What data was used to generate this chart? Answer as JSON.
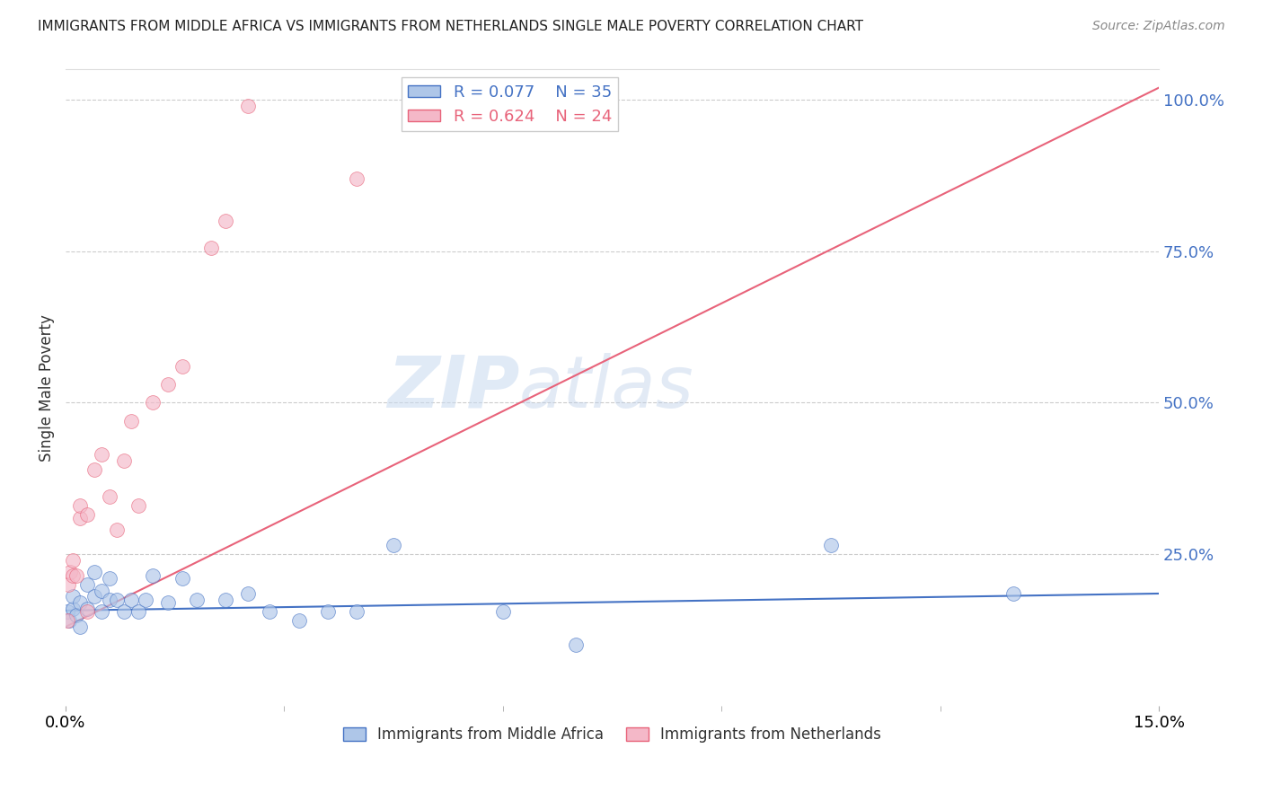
{
  "title": "IMMIGRANTS FROM MIDDLE AFRICA VS IMMIGRANTS FROM NETHERLANDS SINGLE MALE POVERTY CORRELATION CHART",
  "source": "Source: ZipAtlas.com",
  "ylabel": "Single Male Poverty",
  "background_color": "#ffffff",
  "watermark_text": "ZIPatlas",
  "series1_label": "Immigrants from Middle Africa",
  "series1_color": "#aec6e8",
  "series1_line_color": "#4472c4",
  "series1_R": "0.077",
  "series1_N": "35",
  "series2_label": "Immigrants from Netherlands",
  "series2_color": "#f4b8c8",
  "series2_line_color": "#e8637a",
  "series2_R": "0.624",
  "series2_N": "24",
  "xlim": [
    0.0,
    0.15
  ],
  "ylim": [
    0.0,
    1.05
  ],
  "yticks": [
    0.25,
    0.5,
    0.75,
    1.0
  ],
  "ytick_labels": [
    "25.0%",
    "50.0%",
    "75.0%",
    "100.0%"
  ],
  "xtick_labels": [
    "0.0%",
    "15.0%"
  ],
  "grid_color": "#cccccc",
  "title_color": "#222222",
  "axis_color": "#4472c4",
  "s1_x": [
    0.0003,
    0.0005,
    0.001,
    0.001,
    0.0015,
    0.002,
    0.002,
    0.003,
    0.003,
    0.004,
    0.004,
    0.005,
    0.005,
    0.006,
    0.006,
    0.007,
    0.008,
    0.009,
    0.01,
    0.011,
    0.012,
    0.014,
    0.016,
    0.018,
    0.022,
    0.025,
    0.028,
    0.032,
    0.036,
    0.04,
    0.045,
    0.06,
    0.07,
    0.105,
    0.13
  ],
  "s1_y": [
    0.155,
    0.14,
    0.16,
    0.18,
    0.15,
    0.17,
    0.13,
    0.16,
    0.2,
    0.18,
    0.22,
    0.155,
    0.19,
    0.175,
    0.21,
    0.175,
    0.155,
    0.175,
    0.155,
    0.175,
    0.215,
    0.17,
    0.21,
    0.175,
    0.175,
    0.185,
    0.155,
    0.14,
    0.155,
    0.155,
    0.265,
    0.155,
    0.1,
    0.265,
    0.185
  ],
  "s2_x": [
    0.0002,
    0.0004,
    0.0006,
    0.001,
    0.001,
    0.0015,
    0.002,
    0.002,
    0.003,
    0.003,
    0.004,
    0.005,
    0.006,
    0.007,
    0.008,
    0.009,
    0.01,
    0.012,
    0.014,
    0.016,
    0.02,
    0.022,
    0.025,
    0.04
  ],
  "s2_y": [
    0.14,
    0.2,
    0.22,
    0.24,
    0.215,
    0.215,
    0.31,
    0.33,
    0.315,
    0.155,
    0.39,
    0.415,
    0.345,
    0.29,
    0.405,
    0.47,
    0.33,
    0.5,
    0.53,
    0.56,
    0.755,
    0.8,
    0.99,
    0.87
  ],
  "s1_line_x": [
    0.0,
    0.15
  ],
  "s1_line_y": [
    0.157,
    0.185
  ],
  "s2_line_x": [
    0.0,
    0.15
  ],
  "s2_line_y": [
    0.13,
    1.02
  ]
}
